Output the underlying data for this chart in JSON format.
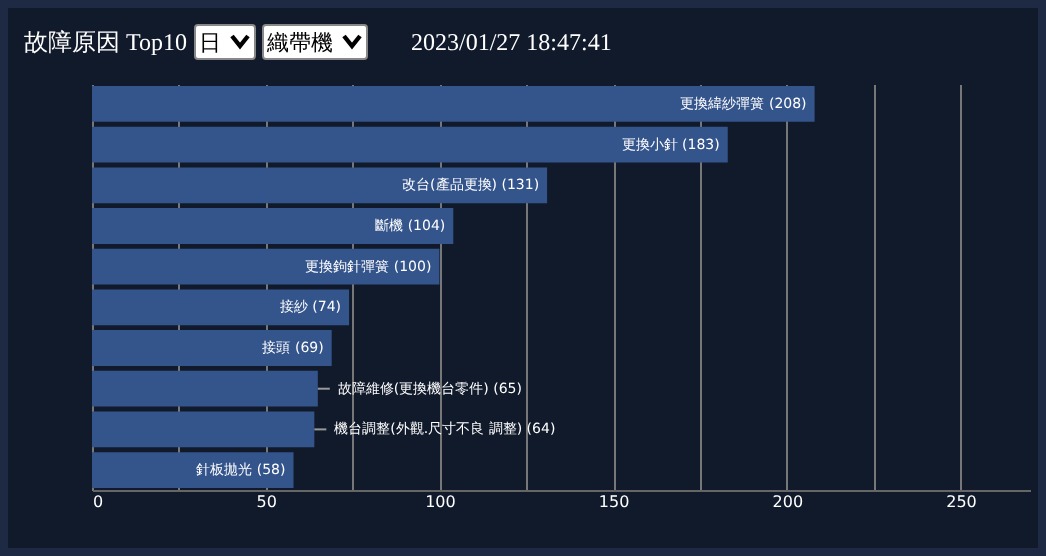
{
  "chart_data": {
    "type": "bar",
    "orientation": "horizontal",
    "title": "故障原因 Top10",
    "annotations": [
      "日",
      "織帶機",
      "2023/01/27 18:47:41"
    ],
    "categories": [
      null,
      null,
      null,
      null,
      null,
      null,
      null,
      null,
      null,
      null
    ],
    "values": [
      208,
      183,
      131,
      104,
      100,
      74,
      69,
      65,
      64,
      58
    ],
    "value_labels": [
      "更換緯紗彈簧 (208)",
      "更換小針 (183)",
      "改台(產品更換) (131)",
      "斷機 (104)",
      "更換鉤針彈簧 (100)",
      "接紗 (74)",
      "接頭 (69)",
      "故障維修(更換機台零件) (65)",
      "機台調整(外觀.尺寸不良 調整) (64)",
      "針板拋光 (58)"
    ],
    "color": "#34548c",
    "xlim": [
      0,
      270
    ],
    "xticks": [
      0,
      {
        "value": 25,
        "label": null
      },
      50,
      {
        "value": 75,
        "label": null
      },
      100,
      {
        "value": 125,
        "label": null
      },
      150,
      {
        "value": 175,
        "label": null
      },
      200,
      {
        "value": 225,
        "label": null
      },
      250
    ],
    "grid": "x",
    "tick_labels": "x"
  }
}
